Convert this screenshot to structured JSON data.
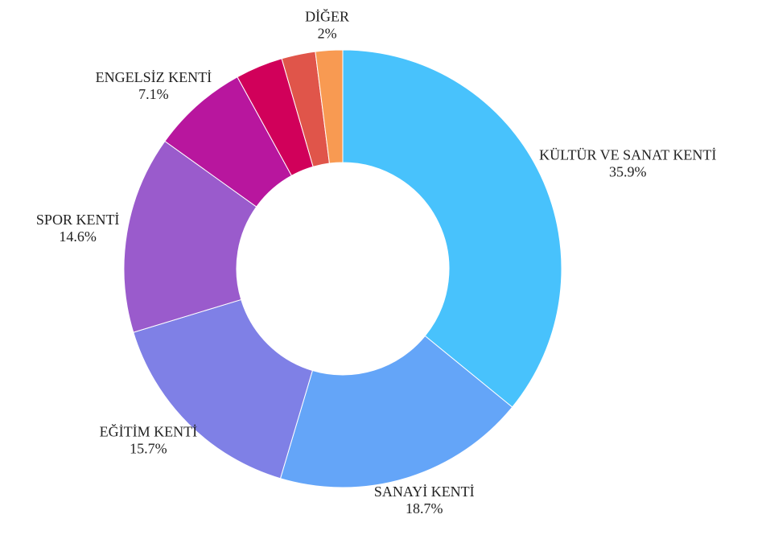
{
  "chart_data": {
    "type": "donut",
    "categories": [
      "KÜLTÜR VE SANAT KENTİ",
      "SANAYİ KENTİ",
      "EĞİTİM KENTİ",
      "SPOR KENTİ",
      "ENGELSİZ KENTİ",
      null,
      null,
      "DİĞER"
    ],
    "values": [
      35.9,
      18.7,
      15.7,
      14.6,
      7.1,
      3.5,
      2.5,
      2
    ],
    "value_labels": [
      "35.9%",
      "18.7%",
      "15.7%",
      "14.6%",
      "7.1%",
      null,
      null,
      "2%"
    ],
    "colors": [
      "#48c2fc",
      "#64a5f8",
      "#7f80e6",
      "#9a5bcc",
      "#b8169e",
      "#d1005a",
      "#e0554a",
      "#f89a52"
    ]
  }
}
